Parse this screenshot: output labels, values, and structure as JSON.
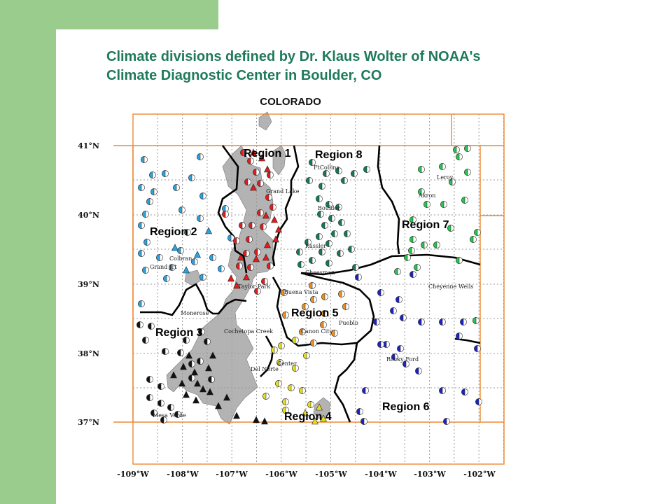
{
  "slide": {
    "title_line1": "Climate divisions defined by Dr. Klaus Wolter of NOAA's",
    "title_line2": "Climate Diagnostic Center in Boulder, CO"
  },
  "map": {
    "state_label": "COLORADO",
    "latitude_labels": [
      "41°N",
      "40°N",
      "39°N",
      "38°N",
      "37°N"
    ],
    "longitude_labels": [
      "-109°W",
      "-108°W",
      "-107°W",
      "-106°W",
      "-105°W",
      "-104°W",
      "-103°W",
      "-102°W"
    ],
    "regions": [
      {
        "label": "Region 1",
        "color": "#e31b1b"
      },
      {
        "label": "Region 2",
        "color": "#2aa3e0"
      },
      {
        "label": "Region 3",
        "color": "#111111"
      },
      {
        "label": "Region 4",
        "color": "#e8e01a"
      },
      {
        "label": "Region 5",
        "color": "#f09018"
      },
      {
        "label": "Region 6",
        "color": "#1a22c8"
      },
      {
        "label": "Region 7",
        "color": "#22c84a"
      },
      {
        "label": "Region 8",
        "color": "#137a55"
      }
    ],
    "cities": [
      "FtCollins",
      "Grand Lake",
      "Boulder",
      "Kassler",
      "Cheesman",
      "Leroy",
      "Akron",
      "Colbran",
      "Grand Jct",
      "Taylor Park",
      "Buena Vista",
      "Cheyenne Wells",
      "Monerose",
      "Cochetopa Creek",
      "Canon City",
      "Pueblo",
      "Rocky Ford",
      "Del Norte",
      "Center",
      "Mesa Verde"
    ],
    "colors": {
      "frame": "#ee8833",
      "grid": "#9a9a9a",
      "terrain": "#b3b3b3",
      "boundary": "#000000",
      "accent_green": "#9acc8e",
      "title": "#1f7a5a"
    }
  }
}
